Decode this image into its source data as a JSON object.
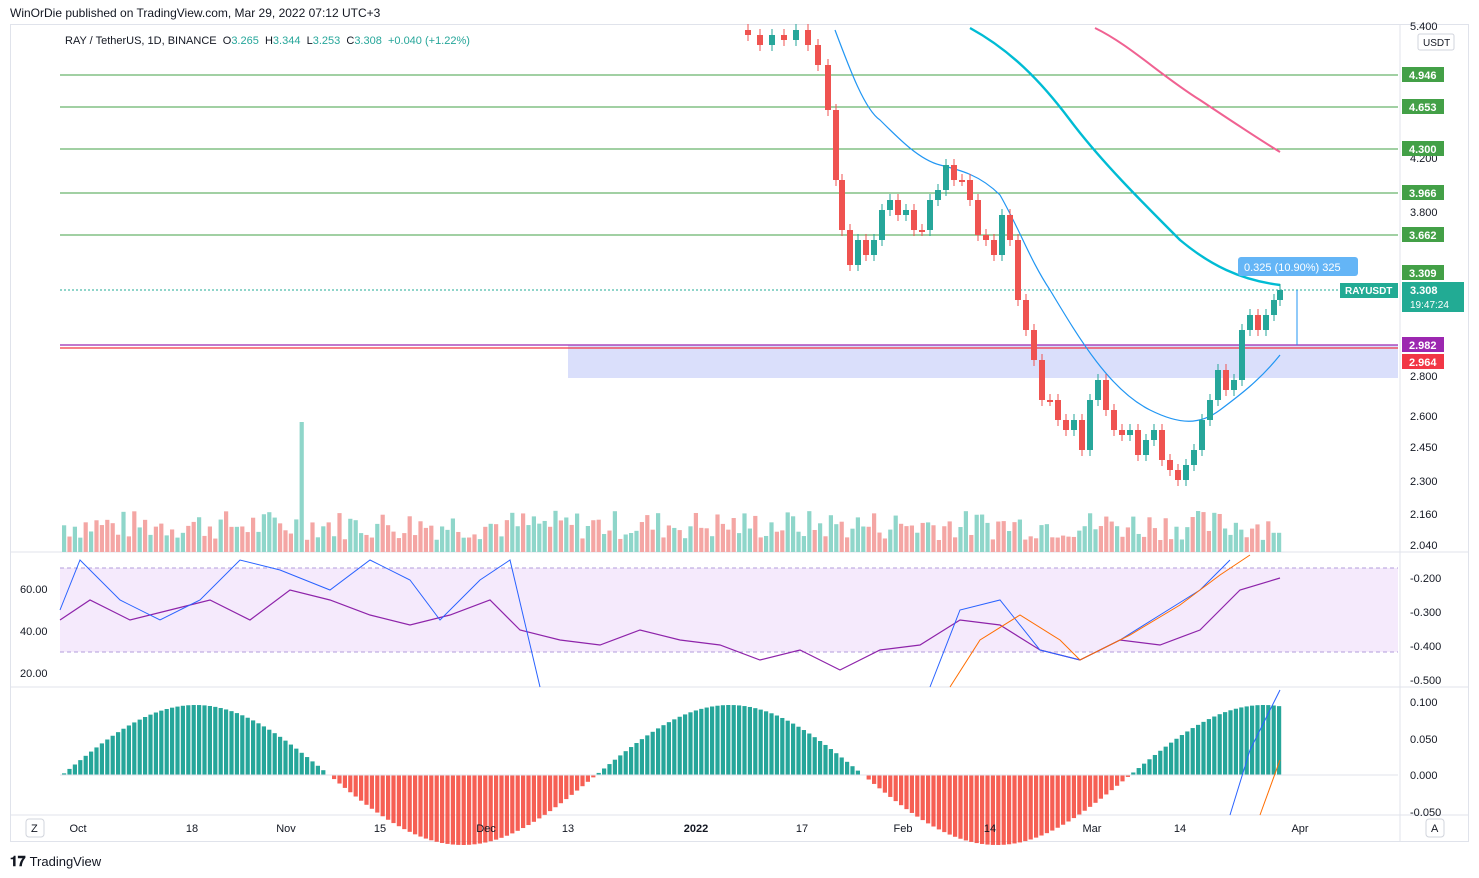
{
  "header": {
    "published": "WinOrDie published on TradingView.com, Mar 29, 2022 07:12 UTC+3"
  },
  "legend": {
    "symbol": "RAY / TetherUS, 1D, BINANCE",
    "o_label": "O",
    "o": "3.265",
    "h_label": "H",
    "h": "3.344",
    "l_label": "L",
    "l": "3.253",
    "c_label": "C",
    "c": "3.308",
    "change": "+0.040 (+1.22%)"
  },
  "footer": {
    "brand": "TradingView"
  },
  "price_axis": {
    "currency": "USDT",
    "ticks": [
      "5.400",
      "4.200",
      "3.800",
      "2.800",
      "2.600",
      "2.450",
      "2.300",
      "2.160",
      "2.040"
    ]
  },
  "levels": [
    {
      "label": "4.946",
      "color": "#43a047"
    },
    {
      "label": "4.653",
      "color": "#43a047"
    },
    {
      "label": "4.300",
      "color": "#43a047"
    },
    {
      "label": "3.966",
      "color": "#43a047"
    },
    {
      "label": "3.662",
      "color": "#43a047"
    },
    {
      "label": "3.309",
      "color": "#43a047"
    },
    {
      "label": "2.982",
      "color": "#9c27b0"
    },
    {
      "label": "2.964",
      "color": "#f23645"
    }
  ],
  "last_price": {
    "ticker": "RAYUSDT",
    "price": "3.308",
    "countdown": "19:47:24",
    "color": "#22ab94"
  },
  "measure": {
    "text": "0.325 (10.90%) 325"
  },
  "rsi_axis": {
    "left_ticks": [
      "60.00",
      "40.00",
      "20.00"
    ],
    "right_ticks": [
      "-0.200",
      "-0.300",
      "-0.400",
      "-0.500"
    ]
  },
  "macd_axis": {
    "ticks": [
      "0.100",
      "0.050",
      "0.000",
      "-0.050"
    ]
  },
  "time_axis": {
    "labels": [
      "Oct",
      "18",
      "Nov",
      "15",
      "Dec",
      "13",
      "2022",
      "17",
      "Feb",
      "14",
      "Mar",
      "14",
      "Apr"
    ]
  },
  "buttons": {
    "z": "Z",
    "a": "A"
  },
  "colors": {
    "up": "#26a69a",
    "down": "#ef5350",
    "ema_fast": "#2196f3",
    "ema_mid": "#00bcd4",
    "ema_slow": "#f06292",
    "zone": "#d6dcfb"
  },
  "chart_data": {
    "type": "candlestick",
    "title": "RAY / TetherUS, 1D, BINANCE",
    "ylabel": "USDT",
    "ylim": [
      2.0,
      5.4
    ],
    "candles_close_approx": [
      {
        "date": "2022-01-05",
        "close": 5.4
      },
      {
        "date": "2022-01-17",
        "close": 4.9
      },
      {
        "date": "2022-01-21",
        "close": 3.4
      },
      {
        "date": "2022-02-01",
        "close": 3.8
      },
      {
        "date": "2022-02-10",
        "close": 4.1
      },
      {
        "date": "2022-02-20",
        "close": 3.3
      },
      {
        "date": "2022-02-24",
        "close": 2.6
      },
      {
        "date": "2022-03-05",
        "close": 2.65
      },
      {
        "date": "2022-03-15",
        "close": 2.35
      },
      {
        "date": "2022-03-22",
        "close": 2.9
      },
      {
        "date": "2022-03-28",
        "close": 3.308
      }
    ]
  }
}
